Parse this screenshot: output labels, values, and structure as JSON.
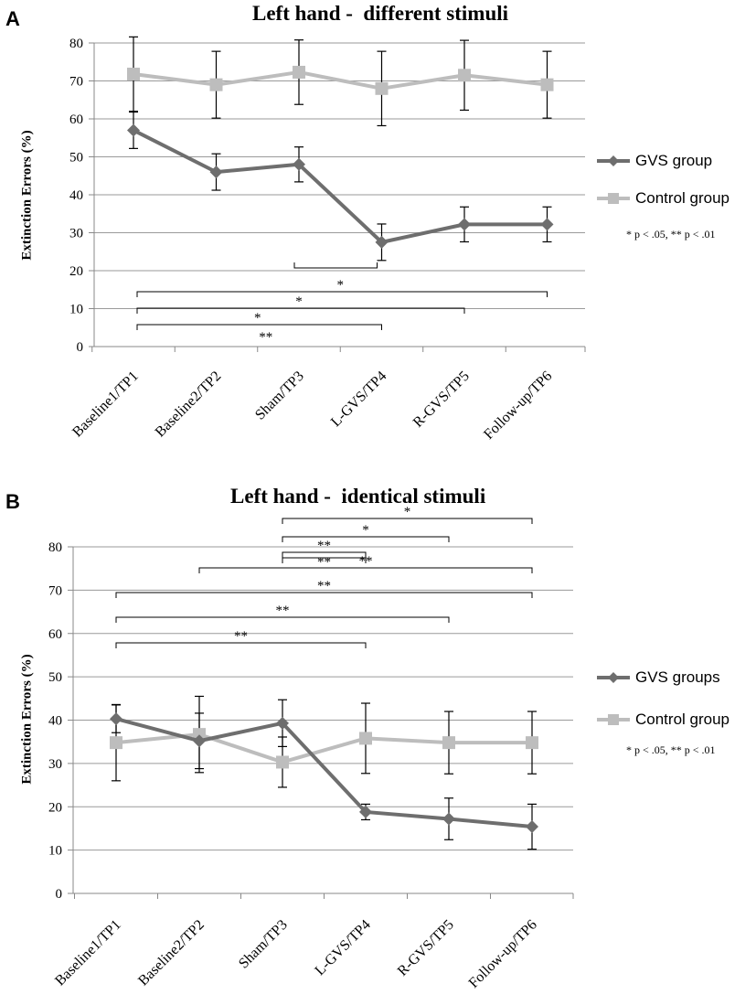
{
  "chart_data": [
    {
      "type": "line",
      "panel_label": "A",
      "title": "Left hand -  different stimuli",
      "xlabel": "",
      "ylabel": "Extinction Errors (%)",
      "ylim": [
        0,
        80
      ],
      "yticks": [
        0,
        10,
        20,
        30,
        40,
        50,
        60,
        70,
        80
      ],
      "categories": [
        "Baseline1/TP1",
        "Baseline2/TP2",
        "Sham/TP3",
        "L-GVS/TP4",
        "R-GVS/TP5",
        "Follow-up/TP6"
      ],
      "grid": true,
      "series": [
        {
          "name": "GVS group",
          "marker": "diamond",
          "color": "#6e6e6e",
          "values": [
            57,
            46,
            48,
            27.5,
            32.2,
            32.2
          ],
          "errors": [
            4.8,
            4.8,
            4.6,
            4.8,
            4.6,
            4.6
          ]
        },
        {
          "name": "Control group",
          "marker": "square",
          "color": "#bdbdbd",
          "values": [
            71.8,
            69,
            72.3,
            68,
            71.5,
            69
          ],
          "errors": [
            9.8,
            8.8,
            8.5,
            9.8,
            9.2,
            8.8
          ]
        }
      ],
      "significance": [
        {
          "from": 2,
          "to": 3,
          "label": ""
        },
        {
          "from": 0,
          "to": 5,
          "label": "*"
        },
        {
          "from": 0,
          "to": 4,
          "label": "*"
        },
        {
          "from": 0,
          "to": 3,
          "label": "*"
        },
        {
          "from": 1.6,
          "to": 1.6,
          "label": "**"
        }
      ],
      "note": "* p < .05, ** p < .01"
    },
    {
      "type": "line",
      "panel_label": "B",
      "title": "Left hand -  identical stimuli",
      "xlabel": "",
      "ylabel": "Extinction Errors (%)",
      "ylim": [
        0,
        80
      ],
      "yticks": [
        0,
        10,
        20,
        30,
        40,
        50,
        60,
        70,
        80
      ],
      "categories": [
        "Baseline1/TP1",
        "Baseline2/TP2",
        "Sham/TP3",
        "L-GVS/TP4",
        "R-GVS/TP5",
        "Follow-up/TP6"
      ],
      "grid": true,
      "series": [
        {
          "name": "GVS groups",
          "marker": "diamond",
          "color": "#6e6e6e",
          "values": [
            40.3,
            35.2,
            39.3,
            18.8,
            17.2,
            15.4
          ],
          "errors": [
            3.2,
            6.4,
            5.4,
            1.8,
            4.8,
            5.2
          ]
        },
        {
          "name": "Control group",
          "marker": "square",
          "color": "#bdbdbd",
          "values": [
            34.8,
            36.7,
            30.3,
            35.8,
            34.8,
            34.8
          ],
          "errors": [
            8.8,
            8.8,
            5.8,
            8.1,
            7.2,
            7.2
          ]
        }
      ],
      "significance": [
        {
          "from": 2,
          "to": 5,
          "label": "*"
        },
        {
          "from": 2,
          "to": 4,
          "label": "*"
        },
        {
          "from": 2,
          "to": 3,
          "label": "**"
        },
        {
          "from": 2,
          "to": 3,
          "label": "**"
        },
        {
          "from": 1,
          "to": 5,
          "label": "**"
        },
        {
          "from": 0,
          "to": 5,
          "label": "**"
        },
        {
          "from": 0,
          "to": 4,
          "label": "**"
        },
        {
          "from": 0,
          "to": 3,
          "label": "**"
        }
      ],
      "note": "* p < .05, ** p < .01"
    }
  ]
}
